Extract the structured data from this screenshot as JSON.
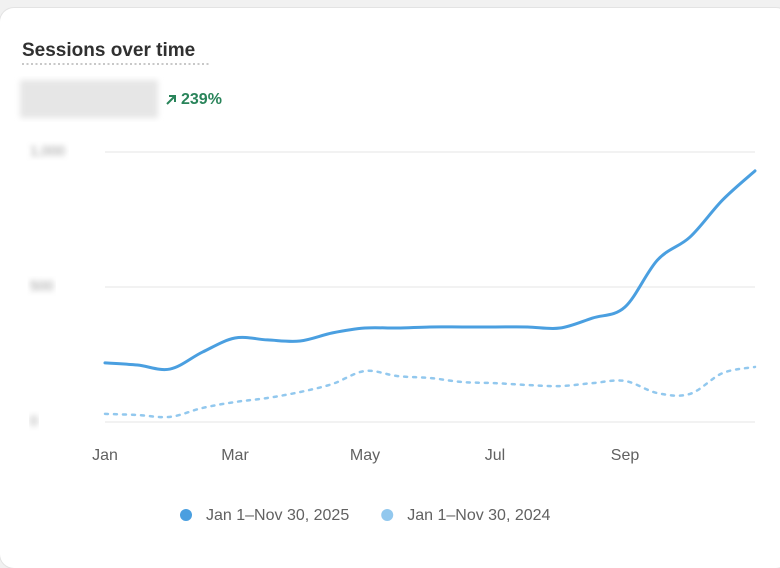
{
  "chart_data": {
    "type": "line",
    "title": "Sessions over time",
    "change": "239%",
    "categories": [
      "Jan",
      null,
      null,
      null,
      "Mar",
      null,
      null,
      null,
      "May",
      null,
      null,
      null,
      "Jul",
      null,
      null,
      null,
      "Sep",
      null,
      null,
      null,
      null
    ],
    "ylim": [
      0,
      1000
    ],
    "yticks": [
      0,
      500,
      {
        "value": 1000,
        "label": "1,000"
      }
    ],
    "grid": true,
    "series": [
      {
        "name": "Jan 1–Nov 30, 2025",
        "color": "#4a9fe0",
        "dashed": false,
        "values": [
          219,
          211,
          196,
          259,
          311,
          304,
          300,
          330,
          348,
          348,
          352,
          352,
          352,
          352,
          348,
          385,
          426,
          600,
          685,
          822,
          930
        ]
      },
      {
        "name": "Jan 1–Nov 30, 2024",
        "color": "#92c8ee",
        "dashed": true,
        "values": [
          30,
          26,
          19,
          52,
          74,
          89,
          111,
          141,
          189,
          170,
          163,
          148,
          144,
          137,
          133,
          144,
          152,
          107,
          104,
          181,
          204
        ]
      }
    ]
  }
}
